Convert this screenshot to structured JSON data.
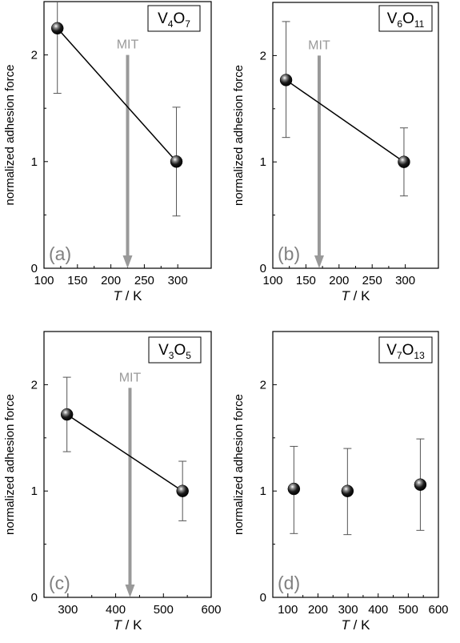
{
  "chart_data": [
    {
      "type": "scatter",
      "panel_label": "(a)",
      "compound": {
        "base": "V",
        "n1": "4",
        "mid": "O",
        "n2": "7"
      },
      "xlabel_var": "T",
      "xlabel_unit": " / K",
      "ylabel": "normalized adhesion force",
      "xlim": [
        100,
        350
      ],
      "ylim": [
        0,
        2.5
      ],
      "xticks": [
        100,
        150,
        200,
        250,
        300
      ],
      "yticks": [
        0,
        1,
        2
      ],
      "points": [
        {
          "x": 120,
          "y": 2.25,
          "err_low": 1.64,
          "err_high": 2.5
        },
        {
          "x": 298,
          "y": 1.0,
          "err_low": 0.49,
          "err_high": 1.51
        }
      ],
      "connect_line": true,
      "mit": {
        "label": "MIT",
        "x": 225,
        "y_top": 2.0,
        "y_bottom": 0.0
      }
    },
    {
      "type": "scatter",
      "panel_label": "(b)",
      "compound": {
        "base": "V",
        "n1": "6",
        "mid": "O",
        "n2": "11"
      },
      "xlabel_var": "T",
      "xlabel_unit": " / K",
      "ylabel": "normalized adhesion force",
      "xlim": [
        100,
        350
      ],
      "ylim": [
        0,
        2.5
      ],
      "xticks": [
        100,
        150,
        200,
        250,
        300
      ],
      "yticks": [
        0,
        1,
        2
      ],
      "points": [
        {
          "x": 120,
          "y": 1.77,
          "err_low": 1.23,
          "err_high": 2.32
        },
        {
          "x": 298,
          "y": 1.0,
          "err_low": 0.68,
          "err_high": 1.32
        }
      ],
      "connect_line": true,
      "mit": {
        "label": "MIT",
        "x": 170,
        "y_top": 2.0,
        "y_bottom": 0.0
      }
    },
    {
      "type": "scatter",
      "panel_label": "(c)",
      "compound": {
        "base": "V",
        "n1": "3",
        "mid": "O",
        "n2": "5"
      },
      "xlabel_var": "T",
      "xlabel_unit": " / K",
      "ylabel": "normalized adhesion force",
      "xlim": [
        250,
        600
      ],
      "ylim": [
        0,
        2.5
      ],
      "xticks": [
        300,
        400,
        500,
        600
      ],
      "yticks": [
        0,
        1,
        2
      ],
      "points": [
        {
          "x": 298,
          "y": 1.72,
          "err_low": 1.37,
          "err_high": 2.07
        },
        {
          "x": 540,
          "y": 1.0,
          "err_low": 0.72,
          "err_high": 1.28
        }
      ],
      "connect_line": true,
      "mit": {
        "label": "MIT",
        "x": 430,
        "y_top": 1.97,
        "y_bottom": 0.0
      }
    },
    {
      "type": "scatter",
      "panel_label": "(d)",
      "compound": {
        "base": "V",
        "n1": "7",
        "mid": "O",
        "n2": "13"
      },
      "xlabel_var": "T",
      "xlabel_unit": " / K",
      "ylabel": "normalized adhesion force",
      "xlim": [
        50,
        600
      ],
      "ylim": [
        0,
        2.5
      ],
      "xticks": [
        100,
        200,
        300,
        400,
        500,
        600
      ],
      "yticks": [
        0,
        1,
        2
      ],
      "points": [
        {
          "x": 120,
          "y": 1.02,
          "err_low": 0.6,
          "err_high": 1.42
        },
        {
          "x": 298,
          "y": 1.0,
          "err_low": 0.59,
          "err_high": 1.4
        },
        {
          "x": 540,
          "y": 1.06,
          "err_low": 0.63,
          "err_high": 1.49
        }
      ],
      "connect_line": false
    }
  ]
}
